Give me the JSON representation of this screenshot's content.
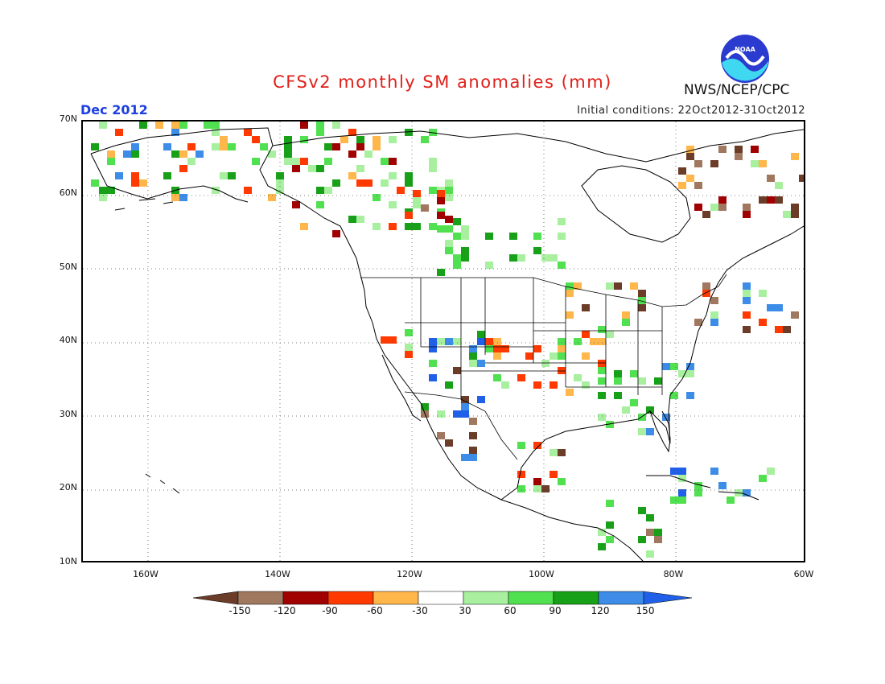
{
  "title": "CFSv2 monthly SM anomalies (mm)",
  "period": "Dec 2012",
  "initial_conditions": "Initial conditions: 22Oct2012-31Oct2012",
  "agency": "NWS/NCEP/CPC",
  "logo_text": "NOAA",
  "map": {
    "lat_labels": [
      "70N",
      "60N",
      "50N",
      "40N",
      "30N",
      "20N",
      "10N"
    ],
    "lon_labels": [
      "160W",
      "140W",
      "120W",
      "100W",
      "80W",
      "60W"
    ],
    "gridlines": "dotted"
  },
  "legend": {
    "labels": [
      "-150",
      "-120",
      "-90",
      "-60",
      "-30",
      "30",
      "60",
      "90",
      "120",
      "150"
    ],
    "colors": [
      "#6b3c28",
      "#a07860",
      "#a00000",
      "#ff3a00",
      "#ffb64b",
      "#ffffff",
      "#a8f0a0",
      "#50e050",
      "#18a018",
      "#3c8ce8",
      "#2060e8"
    ]
  },
  "colors": {
    "title": "#e0201a",
    "period": "#1c3fe0",
    "land_outline": "#000000"
  }
}
